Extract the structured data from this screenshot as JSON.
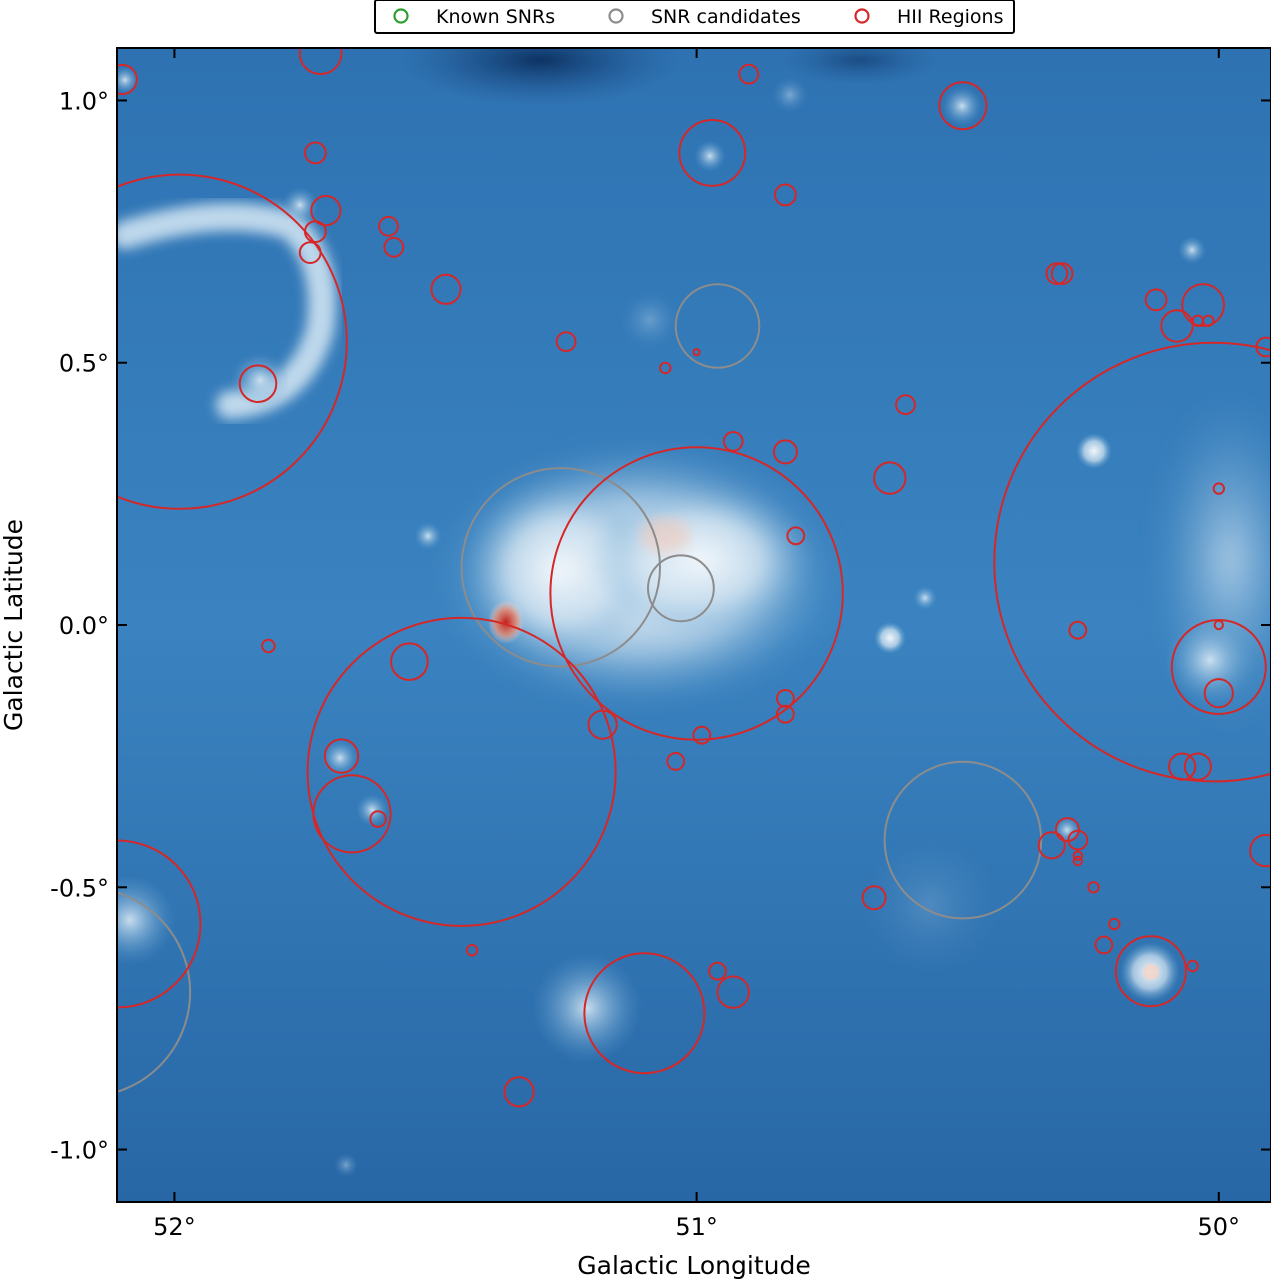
{
  "chart_data": {
    "type": "scatter",
    "title": "",
    "xlabel": "Galactic Longitude",
    "ylabel": "Galactic Latitude",
    "xlim": [
      52.11,
      49.9
    ],
    "ylim": [
      -1.1,
      1.1
    ],
    "x_ticks": [
      {
        "value": 52.0,
        "label": "52°"
      },
      {
        "value": 51.0,
        "label": "51°"
      },
      {
        "value": 50.0,
        "label": "50°"
      }
    ],
    "y_ticks": [
      {
        "value": 1.0,
        "label": "1.0°"
      },
      {
        "value": 0.5,
        "label": "0.5°"
      },
      {
        "value": 0.0,
        "label": "0.0°"
      },
      {
        "value": -0.5,
        "label": "-0.5°"
      },
      {
        "value": -1.0,
        "label": "-1.0°"
      }
    ],
    "legend_position": "top",
    "colors": {
      "known_snr": "#2ca02c",
      "snr_candidate": "#8c8c8c",
      "hii_region": "#d62728",
      "map_dark": "#0b2f5e",
      "map_mid": "#2a6fb0",
      "map_light": "#e8f1f8",
      "map_hot": "#cc2a1e"
    },
    "background_image": "Galactic plane intensity map (blue to white to red colormap)",
    "series": [
      {
        "name": "Known SNRs",
        "color": "#2ca02c",
        "marker": "open-circle",
        "circles": []
      },
      {
        "name": "SNR candidates",
        "color": "#8c8c8c",
        "marker": "open-circle",
        "circles": [
          {
            "l": 50.96,
            "b": 0.57,
            "r": 0.08
          },
          {
            "l": 51.26,
            "b": 0.11,
            "r": 0.19
          },
          {
            "l": 51.03,
            "b": 0.07,
            "r": 0.063
          },
          {
            "l": 50.49,
            "b": -0.41,
            "r": 0.15
          },
          {
            "l": 52.17,
            "b": -0.7,
            "r": 0.2
          }
        ]
      },
      {
        "name": "HII Regions",
        "color": "#d62728",
        "marker": "open-circle",
        "circles": [
          {
            "l": 51.99,
            "b": 0.54,
            "r": 0.32
          },
          {
            "l": 50.01,
            "b": 0.12,
            "r": 0.42
          },
          {
            "l": 51.0,
            "b": 0.06,
            "r": 0.28
          },
          {
            "l": 51.45,
            "b": -0.28,
            "r": 0.295
          },
          {
            "l": 52.11,
            "b": -0.57,
            "r": 0.16
          },
          {
            "l": 51.1,
            "b": -0.74,
            "r": 0.115
          },
          {
            "l": 50.0,
            "b": -0.08,
            "r": 0.09
          },
          {
            "l": 50.13,
            "b": -0.66,
            "r": 0.067
          },
          {
            "l": 50.97,
            "b": 0.9,
            "r": 0.063
          },
          {
            "l": 51.66,
            "b": -0.36,
            "r": 0.074
          },
          {
            "l": 51.73,
            "b": 0.9,
            "r": 0.02
          },
          {
            "l": 52.1,
            "b": 1.04,
            "r": 0.028
          },
          {
            "l": 51.72,
            "b": 1.09,
            "r": 0.04
          },
          {
            "l": 51.84,
            "b": 0.46,
            "r": 0.035
          },
          {
            "l": 51.71,
            "b": 0.79,
            "r": 0.028
          },
          {
            "l": 51.73,
            "b": 0.75,
            "r": 0.02
          },
          {
            "l": 51.74,
            "b": 0.71,
            "r": 0.02
          },
          {
            "l": 51.59,
            "b": 0.76,
            "r": 0.018
          },
          {
            "l": 51.58,
            "b": 0.72,
            "r": 0.018
          },
          {
            "l": 51.48,
            "b": 0.64,
            "r": 0.028
          },
          {
            "l": 51.25,
            "b": 0.54,
            "r": 0.018
          },
          {
            "l": 50.9,
            "b": 1.05,
            "r": 0.018
          },
          {
            "l": 50.83,
            "b": 0.82,
            "r": 0.02
          },
          {
            "l": 50.49,
            "b": 0.99,
            "r": 0.045
          },
          {
            "l": 50.31,
            "b": 0.67,
            "r": 0.02
          },
          {
            "l": 50.3,
            "b": 0.67,
            "r": 0.02
          },
          {
            "l": 50.12,
            "b": 0.62,
            "r": 0.02
          },
          {
            "l": 50.08,
            "b": 0.57,
            "r": 0.03
          },
          {
            "l": 50.03,
            "b": 0.61,
            "r": 0.04
          },
          {
            "l": 50.04,
            "b": 0.58,
            "r": 0.01
          },
          {
            "l": 50.02,
            "b": 0.58,
            "r": 0.01
          },
          {
            "l": 49.91,
            "b": 0.53,
            "r": 0.018
          },
          {
            "l": 50.6,
            "b": 0.42,
            "r": 0.018
          },
          {
            "l": 50.83,
            "b": 0.33,
            "r": 0.022
          },
          {
            "l": 50.93,
            "b": 0.35,
            "r": 0.018
          },
          {
            "l": 50.63,
            "b": 0.28,
            "r": 0.03
          },
          {
            "l": 50.81,
            "b": 0.17,
            "r": 0.016
          },
          {
            "l": 50.0,
            "b": 0.26,
            "r": 0.01
          },
          {
            "l": 50.0,
            "b": 0.0,
            "r": 0.008
          },
          {
            "l": 50.27,
            "b": -0.01,
            "r": 0.016
          },
          {
            "l": 50.0,
            "b": -0.13,
            "r": 0.027
          },
          {
            "l": 51.55,
            "b": -0.07,
            "r": 0.035
          },
          {
            "l": 51.18,
            "b": -0.19,
            "r": 0.027
          },
          {
            "l": 50.99,
            "b": -0.21,
            "r": 0.016
          },
          {
            "l": 51.04,
            "b": -0.26,
            "r": 0.016
          },
          {
            "l": 50.83,
            "b": -0.14,
            "r": 0.016
          },
          {
            "l": 50.83,
            "b": -0.17,
            "r": 0.016
          },
          {
            "l": 51.68,
            "b": -0.25,
            "r": 0.032
          },
          {
            "l": 51.61,
            "b": -0.37,
            "r": 0.015
          },
          {
            "l": 51.82,
            "b": -0.04,
            "r": 0.012
          },
          {
            "l": 50.66,
            "b": -0.52,
            "r": 0.022
          },
          {
            "l": 50.32,
            "b": -0.42,
            "r": 0.025
          },
          {
            "l": 50.29,
            "b": -0.39,
            "r": 0.022
          },
          {
            "l": 50.27,
            "b": -0.41,
            "r": 0.018
          },
          {
            "l": 50.27,
            "b": -0.44,
            "r": 0.008
          },
          {
            "l": 50.27,
            "b": -0.45,
            "r": 0.008
          },
          {
            "l": 50.24,
            "b": -0.5,
            "r": 0.01
          },
          {
            "l": 50.22,
            "b": -0.61,
            "r": 0.016
          },
          {
            "l": 50.2,
            "b": -0.57,
            "r": 0.01
          },
          {
            "l": 50.07,
            "b": -0.27,
            "r": 0.025
          },
          {
            "l": 50.04,
            "b": -0.27,
            "r": 0.025
          },
          {
            "l": 50.05,
            "b": -0.65,
            "r": 0.01
          },
          {
            "l": 51.43,
            "b": -0.62,
            "r": 0.01
          },
          {
            "l": 50.96,
            "b": -0.66,
            "r": 0.016
          },
          {
            "l": 50.93,
            "b": -0.7,
            "r": 0.03
          },
          {
            "l": 51.34,
            "b": -0.89,
            "r": 0.028
          },
          {
            "l": 51.06,
            "b": 0.49,
            "r": 0.01
          },
          {
            "l": 51.0,
            "b": 0.52,
            "r": 0.006
          },
          {
            "l": 49.91,
            "b": -0.43,
            "r": 0.03
          }
        ]
      }
    ]
  }
}
